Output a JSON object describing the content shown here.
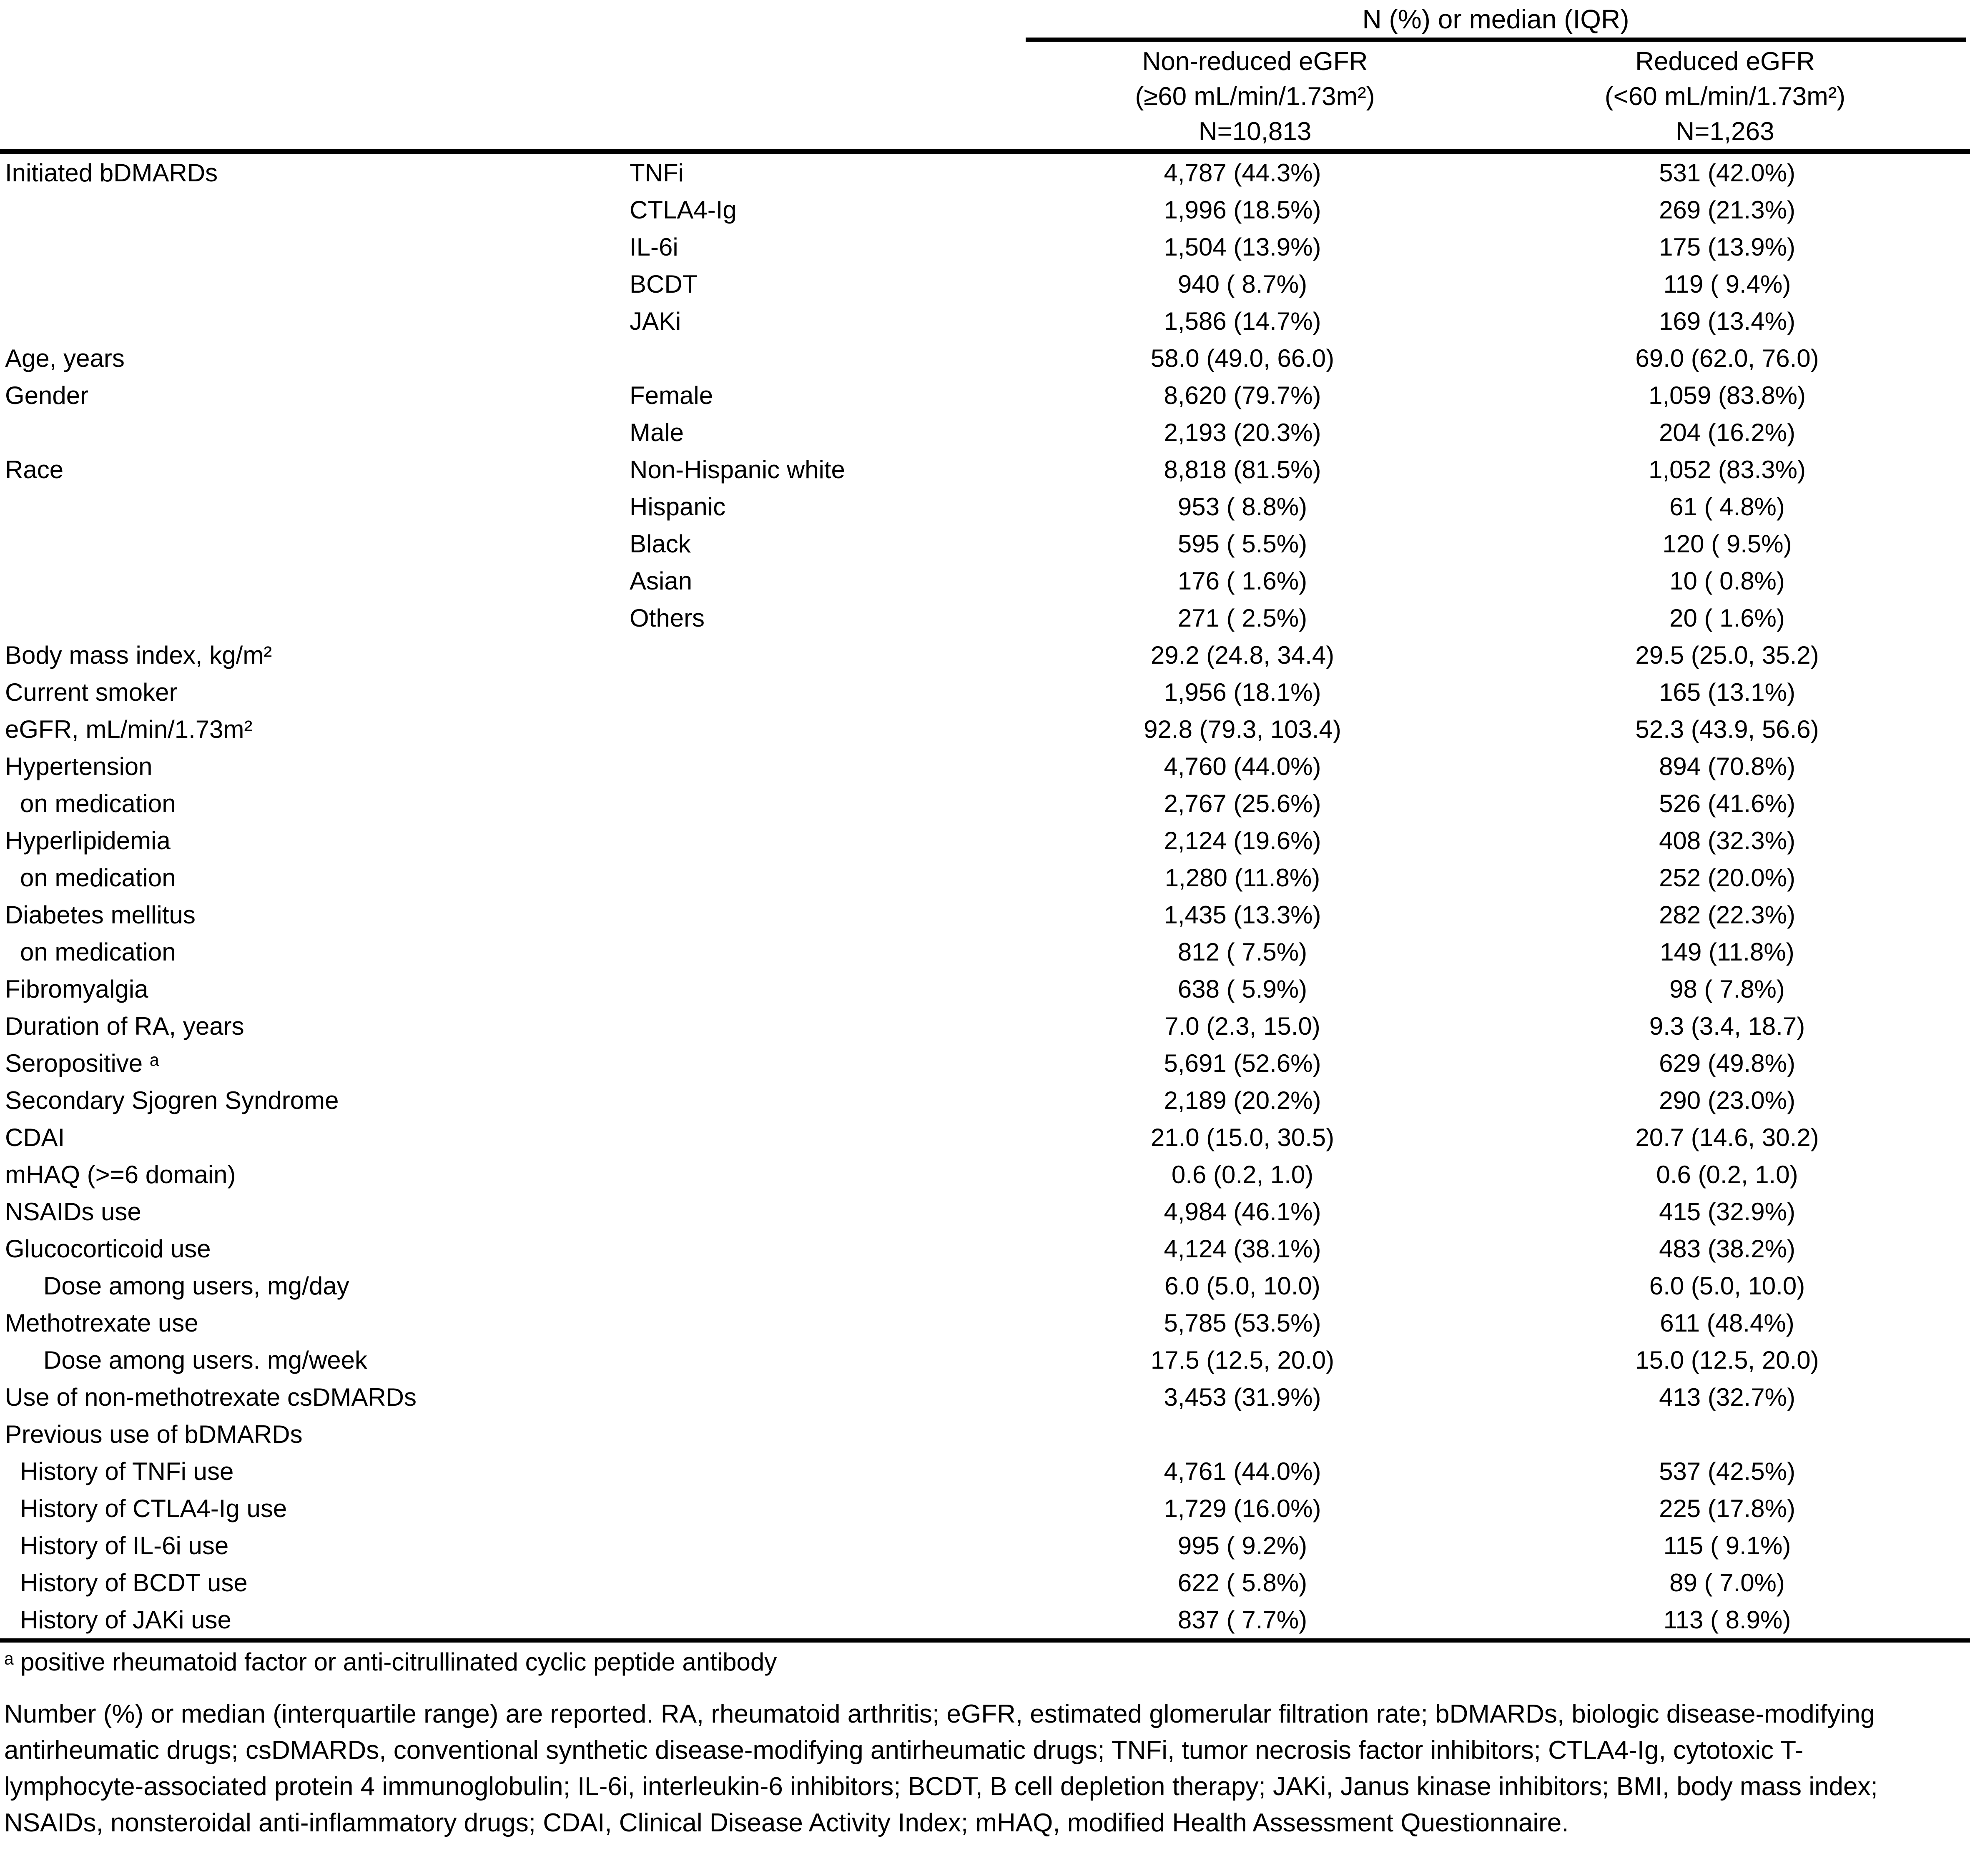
{
  "header": {
    "spanner": "N (%) or median (IQR)",
    "cols": [
      {
        "line1": "Non-reduced eGFR",
        "line2": "(≥60 mL/min/1.73m²)",
        "line3": "N=10,813"
      },
      {
        "line1": "Reduced eGFR",
        "line2": "(<60 mL/min/1.73m²)",
        "line3": "N=1,263"
      }
    ]
  },
  "rows": [
    {
      "label": "Initiated bDMARDs",
      "indent": 0,
      "sub": "TNFi",
      "v1": "4,787 (44.3%)",
      "v2": "531 (42.0%)"
    },
    {
      "label": "",
      "indent": 0,
      "sub": "CTLA4-Ig",
      "v1": "1,996 (18.5%)",
      "v2": "269 (21.3%)"
    },
    {
      "label": "",
      "indent": 0,
      "sub": "IL-6i",
      "v1": "1,504 (13.9%)",
      "v2": "175 (13.9%)"
    },
    {
      "label": "",
      "indent": 0,
      "sub": "BCDT",
      "v1": "940 ( 8.7%)",
      "v2": "119 ( 9.4%)"
    },
    {
      "label": "",
      "indent": 0,
      "sub": "JAKi",
      "v1": "1,586 (14.7%)",
      "v2": "169 (13.4%)"
    },
    {
      "label": "Age, years",
      "indent": 0,
      "sub": "",
      "v1": "58.0 (49.0, 66.0)",
      "v2": "69.0 (62.0, 76.0)"
    },
    {
      "label": "Gender",
      "indent": 0,
      "sub": "Female",
      "v1": "8,620 (79.7%)",
      "v2": "1,059 (83.8%)"
    },
    {
      "label": "",
      "indent": 0,
      "sub": "Male",
      "v1": "2,193 (20.3%)",
      "v2": "204 (16.2%)"
    },
    {
      "label": "Race",
      "indent": 0,
      "sub": "Non-Hispanic white",
      "v1": "8,818 (81.5%)",
      "v2": "1,052 (83.3%)"
    },
    {
      "label": "",
      "indent": 0,
      "sub": "Hispanic",
      "v1": "953 ( 8.8%)",
      "v2": "61 ( 4.8%)"
    },
    {
      "label": "",
      "indent": 0,
      "sub": "Black",
      "v1": "595 ( 5.5%)",
      "v2": "120 ( 9.5%)"
    },
    {
      "label": "",
      "indent": 0,
      "sub": "Asian",
      "v1": "176 ( 1.6%)",
      "v2": "10 ( 0.8%)"
    },
    {
      "label": "",
      "indent": 0,
      "sub": "Others",
      "v1": "271 ( 2.5%)",
      "v2": "20 ( 1.6%)"
    },
    {
      "label": "Body mass index, kg/m²",
      "indent": 0,
      "sub": "",
      "v1": "29.2 (24.8, 34.4)",
      "v2": "29.5 (25.0, 35.2)"
    },
    {
      "label": "Current smoker",
      "indent": 0,
      "sub": "",
      "v1": "1,956 (18.1%)",
      "v2": "165 (13.1%)"
    },
    {
      "label": "eGFR, mL/min/1.73m²",
      "indent": 0,
      "sub": "",
      "v1": "92.8 (79.3, 103.4)",
      "v2": "52.3 (43.9, 56.6)"
    },
    {
      "label": "Hypertension",
      "indent": 0,
      "sub": "",
      "v1": "4,760 (44.0%)",
      "v2": "894 (70.8%)"
    },
    {
      "label": "on medication",
      "indent": 1,
      "sub": "",
      "v1": "2,767 (25.6%)",
      "v2": "526 (41.6%)"
    },
    {
      "label": "Hyperlipidemia",
      "indent": 0,
      "sub": "",
      "v1": "2,124 (19.6%)",
      "v2": "408 (32.3%)"
    },
    {
      "label": "on medication",
      "indent": 1,
      "sub": "",
      "v1": "1,280 (11.8%)",
      "v2": "252 (20.0%)"
    },
    {
      "label": "Diabetes mellitus",
      "indent": 0,
      "sub": "",
      "v1": "1,435 (13.3%)",
      "v2": "282 (22.3%)"
    },
    {
      "label": "on medication",
      "indent": 1,
      "sub": "",
      "v1": "812 ( 7.5%)",
      "v2": "149 (11.8%)"
    },
    {
      "label": "Fibromyalgia",
      "indent": 0,
      "sub": "",
      "v1": "638 ( 5.9%)",
      "v2": "98 ( 7.8%)"
    },
    {
      "label": "Duration of RA, years",
      "indent": 0,
      "sub": "",
      "v1": "7.0 (2.3, 15.0)",
      "v2": "9.3 (3.4, 18.7)"
    },
    {
      "label": "Seropositive ᵃ",
      "indent": 0,
      "sub": "",
      "v1": "5,691 (52.6%)",
      "v2": "629 (49.8%)"
    },
    {
      "label": "Secondary Sjogren Syndrome",
      "indent": 0,
      "sub": "",
      "v1": "2,189 (20.2%)",
      "v2": "290 (23.0%)"
    },
    {
      "label": "CDAI",
      "indent": 0,
      "sub": "",
      "v1": "21.0 (15.0, 30.5)",
      "v2": "20.7 (14.6, 30.2)"
    },
    {
      "label": "mHAQ (>=6 domain)",
      "indent": 0,
      "sub": "",
      "v1": "0.6 (0.2, 1.0)",
      "v2": "0.6 (0.2, 1.0)"
    },
    {
      "label": "NSAIDs use",
      "indent": 0,
      "sub": "",
      "v1": "4,984 (46.1%)",
      "v2": "415 (32.9%)"
    },
    {
      "label": "Glucocorticoid use",
      "indent": 0,
      "sub": "",
      "v1": "4,124 (38.1%)",
      "v2": "483 (38.2%)"
    },
    {
      "label": "Dose among users, mg/day",
      "indent": 2,
      "sub": "",
      "v1": "6.0 (5.0, 10.0)",
      "v2": "6.0 (5.0, 10.0)"
    },
    {
      "label": "Methotrexate use",
      "indent": 0,
      "sub": "",
      "v1": "5,785 (53.5%)",
      "v2": "611 (48.4%)"
    },
    {
      "label": "Dose among users. mg/week",
      "indent": 2,
      "sub": "",
      "v1": "17.5 (12.5, 20.0)",
      "v2": "15.0 (12.5, 20.0)"
    },
    {
      "label": "Use of non-methotrexate csDMARDs",
      "indent": 0,
      "sub": "",
      "v1": "3,453 (31.9%)",
      "v2": "413 (32.7%)"
    },
    {
      "label": "Previous use of bDMARDs",
      "indent": 0,
      "sub": "",
      "v1": "",
      "v2": ""
    },
    {
      "label": "History of TNFi use",
      "indent": 1,
      "sub": "",
      "v1": "4,761 (44.0%)",
      "v2": "537 (42.5%)"
    },
    {
      "label": "History of CTLA4-Ig use",
      "indent": 1,
      "sub": "",
      "v1": "1,729 (16.0%)",
      "v2": "225 (17.8%)"
    },
    {
      "label": "History of IL-6i use",
      "indent": 1,
      "sub": "",
      "v1": "995 ( 9.2%)",
      "v2": "115 ( 9.1%)"
    },
    {
      "label": "History of BCDT use",
      "indent": 1,
      "sub": "",
      "v1": "622 ( 5.8%)",
      "v2": "89 ( 7.0%)"
    },
    {
      "label": "History of JAKi use",
      "indent": 1,
      "sub": "",
      "v1": "837 ( 7.7%)",
      "v2": "113 ( 8.9%)"
    }
  ],
  "footnotes": {
    "marker_note": "ᵃ positive rheumatoid factor or anti-citrullinated cyclic peptide antibody",
    "abbreviations": "Number (%) or median (interquartile range) are reported. RA, rheumatoid arthritis; eGFR, estimated glomerular filtration rate; bDMARDs, biologic disease-modifying antirheumatic drugs; csDMARDs, conventional synthetic disease-modifying antirheumatic drugs; TNFi, tumor necrosis factor inhibitors; CTLA4-Ig, cytotoxic T-lymphocyte-associated protein 4 immunoglobulin; IL-6i, interleukin-6 inhibitors; BCDT, B cell depletion therapy; JAKi, Janus kinase inhibitors; BMI, body mass index; NSAIDs, nonsteroidal anti-inflammatory drugs; CDAI, Clinical Disease Activity Index; mHAQ, modified Health Assessment Questionnaire."
  },
  "colors": {
    "text": "#000000",
    "background": "#ffffff",
    "rule": "#000000"
  }
}
